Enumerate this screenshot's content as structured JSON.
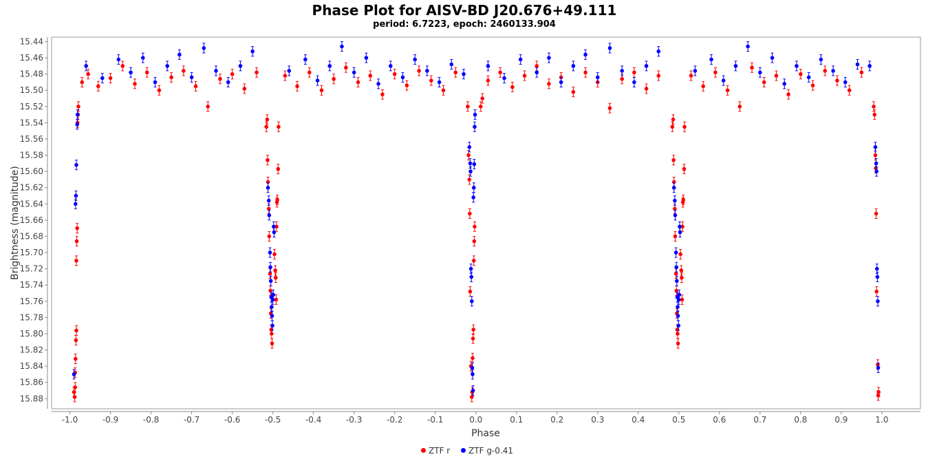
{
  "chart_data": {
    "type": "scatter",
    "title": "Phase Plot for AISV-BD J20.676+49.111",
    "subtitle": "period: 6.7223, epoch: 2460133.904",
    "xlabel": "Phase",
    "ylabel": "Brightness (magnitude)",
    "xlim": [
      -1.045,
      1.095
    ],
    "ylim": [
      15.4345,
      15.8925
    ],
    "y_inverted": true,
    "x_ticks": [
      "-1.0",
      "-0.9",
      "-0.8",
      "-0.7",
      "-0.6",
      "-0.5",
      "-0.4",
      "-0.3",
      "-0.2",
      "-0.1",
      "0.0",
      "0.1",
      "0.2",
      "0.3",
      "0.4",
      "0.5",
      "0.6",
      "0.7",
      "0.8",
      "0.9",
      "1.0"
    ],
    "y_ticks": [
      "15.44",
      "15.46",
      "15.48",
      "15.50",
      "15.52",
      "15.54",
      "15.56",
      "15.58",
      "15.60",
      "15.62",
      "15.64",
      "15.66",
      "15.68",
      "15.70",
      "15.72",
      "15.74",
      "15.76",
      "15.78",
      "15.80",
      "15.82",
      "15.84",
      "15.86",
      "15.88"
    ],
    "grid": false,
    "legend_position": "bottom",
    "series": [
      {
        "name": "ZTF r",
        "color": "#ff0000",
        "points": [
          [
            -0.99,
            15.872
          ],
          [
            -0.988,
            15.878
          ],
          [
            -0.987,
            15.866
          ],
          [
            -0.987,
            15.848
          ],
          [
            -0.986,
            15.831
          ],
          [
            -0.985,
            15.808
          ],
          [
            -0.984,
            15.796
          ],
          [
            -0.984,
            15.71
          ],
          [
            -0.983,
            15.686
          ],
          [
            -0.982,
            15.67
          ],
          [
            -0.981,
            15.54
          ],
          [
            -0.98,
            15.53
          ],
          [
            -0.979,
            15.52
          ],
          [
            -0.97,
            15.49
          ],
          [
            -0.955,
            15.48
          ],
          [
            -0.93,
            15.495
          ],
          [
            -0.9,
            15.485
          ],
          [
            -0.87,
            15.47
          ],
          [
            -0.84,
            15.492
          ],
          [
            -0.81,
            15.478
          ],
          [
            -0.78,
            15.5
          ],
          [
            -0.75,
            15.484
          ],
          [
            -0.72,
            15.476
          ],
          [
            -0.69,
            15.495
          ],
          [
            -0.66,
            15.52
          ],
          [
            -0.63,
            15.486
          ],
          [
            -0.6,
            15.48
          ],
          [
            -0.57,
            15.498
          ],
          [
            -0.54,
            15.478
          ],
          [
            -0.516,
            15.545
          ],
          [
            -0.514,
            15.536
          ],
          [
            -0.513,
            15.586
          ],
          [
            -0.512,
            15.613
          ],
          [
            -0.51,
            15.646
          ],
          [
            -0.509,
            15.68
          ],
          [
            -0.507,
            15.726
          ],
          [
            -0.506,
            15.747
          ],
          [
            -0.505,
            15.775
          ],
          [
            -0.504,
            15.795
          ],
          [
            -0.503,
            15.8
          ],
          [
            -0.502,
            15.812
          ],
          [
            -0.496,
            15.702
          ],
          [
            -0.494,
            15.722
          ],
          [
            -0.493,
            15.731
          ],
          [
            -0.492,
            15.758
          ],
          [
            -0.491,
            15.668
          ],
          [
            -0.49,
            15.638
          ],
          [
            -0.489,
            15.635
          ],
          [
            -0.487,
            15.597
          ],
          [
            -0.486,
            15.545
          ],
          [
            -0.47,
            15.482
          ],
          [
            -0.44,
            15.495
          ],
          [
            -0.41,
            15.478
          ],
          [
            -0.38,
            15.5
          ],
          [
            -0.35,
            15.486
          ],
          [
            -0.32,
            15.472
          ],
          [
            -0.29,
            15.49
          ],
          [
            -0.26,
            15.482
          ],
          [
            -0.23,
            15.505
          ],
          [
            -0.2,
            15.48
          ],
          [
            -0.17,
            15.494
          ],
          [
            -0.14,
            15.476
          ],
          [
            -0.11,
            15.488
          ],
          [
            -0.08,
            15.5
          ],
          [
            -0.05,
            15.478
          ],
          [
            -0.02,
            15.52
          ],
          [
            -0.018,
            15.58
          ],
          [
            -0.016,
            15.61
          ],
          [
            -0.015,
            15.652
          ],
          [
            -0.014,
            15.748
          ],
          [
            -0.012,
            15.84
          ],
          [
            -0.01,
            15.878
          ],
          [
            -0.009,
            15.872
          ],
          [
            -0.008,
            15.83
          ],
          [
            -0.007,
            15.806
          ],
          [
            -0.006,
            15.795
          ],
          [
            -0.005,
            15.71
          ],
          [
            -0.004,
            15.686
          ],
          [
            -0.003,
            15.668
          ],
          [
            0.012,
            15.52
          ],
          [
            0.016,
            15.51
          ],
          [
            0.03,
            15.488
          ],
          [
            0.06,
            15.478
          ],
          [
            0.09,
            15.496
          ],
          [
            0.12,
            15.482
          ],
          [
            0.15,
            15.47
          ],
          [
            0.18,
            15.492
          ],
          [
            0.21,
            15.484
          ],
          [
            0.24,
            15.502
          ],
          [
            0.27,
            15.478
          ],
          [
            0.3,
            15.49
          ],
          [
            0.33,
            15.522
          ],
          [
            0.36,
            15.486
          ],
          [
            0.39,
            15.478
          ],
          [
            0.42,
            15.498
          ],
          [
            0.45,
            15.482
          ],
          [
            0.484,
            15.545
          ],
          [
            0.486,
            15.536
          ],
          [
            0.487,
            15.586
          ],
          [
            0.488,
            15.613
          ],
          [
            0.49,
            15.646
          ],
          [
            0.491,
            15.68
          ],
          [
            0.493,
            15.726
          ],
          [
            0.494,
            15.747
          ],
          [
            0.495,
            15.775
          ],
          [
            0.496,
            15.795
          ],
          [
            0.497,
            15.8
          ],
          [
            0.498,
            15.812
          ],
          [
            0.504,
            15.702
          ],
          [
            0.506,
            15.722
          ],
          [
            0.507,
            15.731
          ],
          [
            0.508,
            15.758
          ],
          [
            0.509,
            15.668
          ],
          [
            0.51,
            15.638
          ],
          [
            0.511,
            15.635
          ],
          [
            0.513,
            15.597
          ],
          [
            0.514,
            15.545
          ],
          [
            0.53,
            15.482
          ],
          [
            0.56,
            15.495
          ],
          [
            0.59,
            15.478
          ],
          [
            0.62,
            15.5
          ],
          [
            0.65,
            15.52
          ],
          [
            0.68,
            15.472
          ],
          [
            0.71,
            15.49
          ],
          [
            0.74,
            15.482
          ],
          [
            0.77,
            15.505
          ],
          [
            0.8,
            15.48
          ],
          [
            0.83,
            15.494
          ],
          [
            0.86,
            15.476
          ],
          [
            0.89,
            15.488
          ],
          [
            0.92,
            15.5
          ],
          [
            0.95,
            15.478
          ],
          [
            0.98,
            15.52
          ],
          [
            0.982,
            15.53
          ],
          [
            0.984,
            15.58
          ],
          [
            0.985,
            15.596
          ],
          [
            0.986,
            15.652
          ],
          [
            0.987,
            15.748
          ],
          [
            0.99,
            15.838
          ],
          [
            0.991,
            15.876
          ],
          [
            0.992,
            15.872
          ]
        ]
      },
      {
        "name": "ZTF g-0.41",
        "color": "#0000ff",
        "points": [
          [
            -0.99,
            15.85
          ],
          [
            -0.986,
            15.64
          ],
          [
            -0.985,
            15.63
          ],
          [
            -0.984,
            15.592
          ],
          [
            -0.982,
            15.542
          ],
          [
            -0.981,
            15.53
          ],
          [
            -0.96,
            15.47
          ],
          [
            -0.92,
            15.485
          ],
          [
            -0.88,
            15.462
          ],
          [
            -0.85,
            15.478
          ],
          [
            -0.82,
            15.46
          ],
          [
            -0.79,
            15.49
          ],
          [
            -0.76,
            15.47
          ],
          [
            -0.73,
            15.456
          ],
          [
            -0.7,
            15.484
          ],
          [
            -0.67,
            15.448
          ],
          [
            -0.64,
            15.476
          ],
          [
            -0.61,
            15.49
          ],
          [
            -0.58,
            15.47
          ],
          [
            -0.55,
            15.452
          ],
          [
            -0.512,
            15.62
          ],
          [
            -0.51,
            15.636
          ],
          [
            -0.509,
            15.654
          ],
          [
            -0.507,
            15.7
          ],
          [
            -0.506,
            15.718
          ],
          [
            -0.505,
            15.735
          ],
          [
            -0.504,
            15.755
          ],
          [
            -0.503,
            15.767
          ],
          [
            -0.502,
            15.778
          ],
          [
            -0.501,
            15.79
          ],
          [
            -0.5,
            15.758
          ],
          [
            -0.499,
            15.752
          ],
          [
            -0.498,
            15.668
          ],
          [
            -0.497,
            15.675
          ],
          [
            -0.46,
            15.476
          ],
          [
            -0.42,
            15.462
          ],
          [
            -0.39,
            15.488
          ],
          [
            -0.36,
            15.47
          ],
          [
            -0.33,
            15.446
          ],
          [
            -0.3,
            15.478
          ],
          [
            -0.27,
            15.46
          ],
          [
            -0.24,
            15.492
          ],
          [
            -0.21,
            15.47
          ],
          [
            -0.18,
            15.484
          ],
          [
            -0.15,
            15.462
          ],
          [
            -0.12,
            15.476
          ],
          [
            -0.09,
            15.49
          ],
          [
            -0.06,
            15.468
          ],
          [
            -0.03,
            15.48
          ],
          [
            -0.016,
            15.57
          ],
          [
            -0.014,
            15.59
          ],
          [
            -0.013,
            15.6
          ],
          [
            -0.012,
            15.72
          ],
          [
            -0.011,
            15.73
          ],
          [
            -0.01,
            15.76
          ],
          [
            -0.009,
            15.842
          ],
          [
            -0.008,
            15.85
          ],
          [
            -0.007,
            15.87
          ],
          [
            -0.006,
            15.632
          ],
          [
            -0.005,
            15.62
          ],
          [
            -0.004,
            15.591
          ],
          [
            -0.003,
            15.545
          ],
          [
            -0.002,
            15.53
          ],
          [
            0.03,
            15.47
          ],
          [
            0.07,
            15.485
          ],
          [
            0.11,
            15.462
          ],
          [
            0.15,
            15.478
          ],
          [
            0.18,
            15.46
          ],
          [
            0.21,
            15.49
          ],
          [
            0.24,
            15.47
          ],
          [
            0.27,
            15.456
          ],
          [
            0.3,
            15.484
          ],
          [
            0.33,
            15.448
          ],
          [
            0.36,
            15.476
          ],
          [
            0.39,
            15.49
          ],
          [
            0.42,
            15.47
          ],
          [
            0.45,
            15.452
          ],
          [
            0.488,
            15.62
          ],
          [
            0.49,
            15.636
          ],
          [
            0.491,
            15.654
          ],
          [
            0.493,
            15.7
          ],
          [
            0.494,
            15.718
          ],
          [
            0.495,
            15.735
          ],
          [
            0.496,
            15.755
          ],
          [
            0.497,
            15.767
          ],
          [
            0.498,
            15.778
          ],
          [
            0.499,
            15.79
          ],
          [
            0.5,
            15.758
          ],
          [
            0.501,
            15.752
          ],
          [
            0.502,
            15.668
          ],
          [
            0.503,
            15.675
          ],
          [
            0.54,
            15.476
          ],
          [
            0.58,
            15.462
          ],
          [
            0.61,
            15.488
          ],
          [
            0.64,
            15.47
          ],
          [
            0.67,
            15.446
          ],
          [
            0.7,
            15.478
          ],
          [
            0.73,
            15.46
          ],
          [
            0.76,
            15.492
          ],
          [
            0.79,
            15.47
          ],
          [
            0.82,
            15.484
          ],
          [
            0.85,
            15.462
          ],
          [
            0.88,
            15.476
          ],
          [
            0.91,
            15.49
          ],
          [
            0.94,
            15.468
          ],
          [
            0.97,
            15.47
          ],
          [
            0.984,
            15.57
          ],
          [
            0.986,
            15.59
          ],
          [
            0.987,
            15.6
          ],
          [
            0.988,
            15.72
          ],
          [
            0.989,
            15.73
          ],
          [
            0.99,
            15.76
          ],
          [
            0.991,
            15.842
          ]
        ]
      }
    ]
  }
}
